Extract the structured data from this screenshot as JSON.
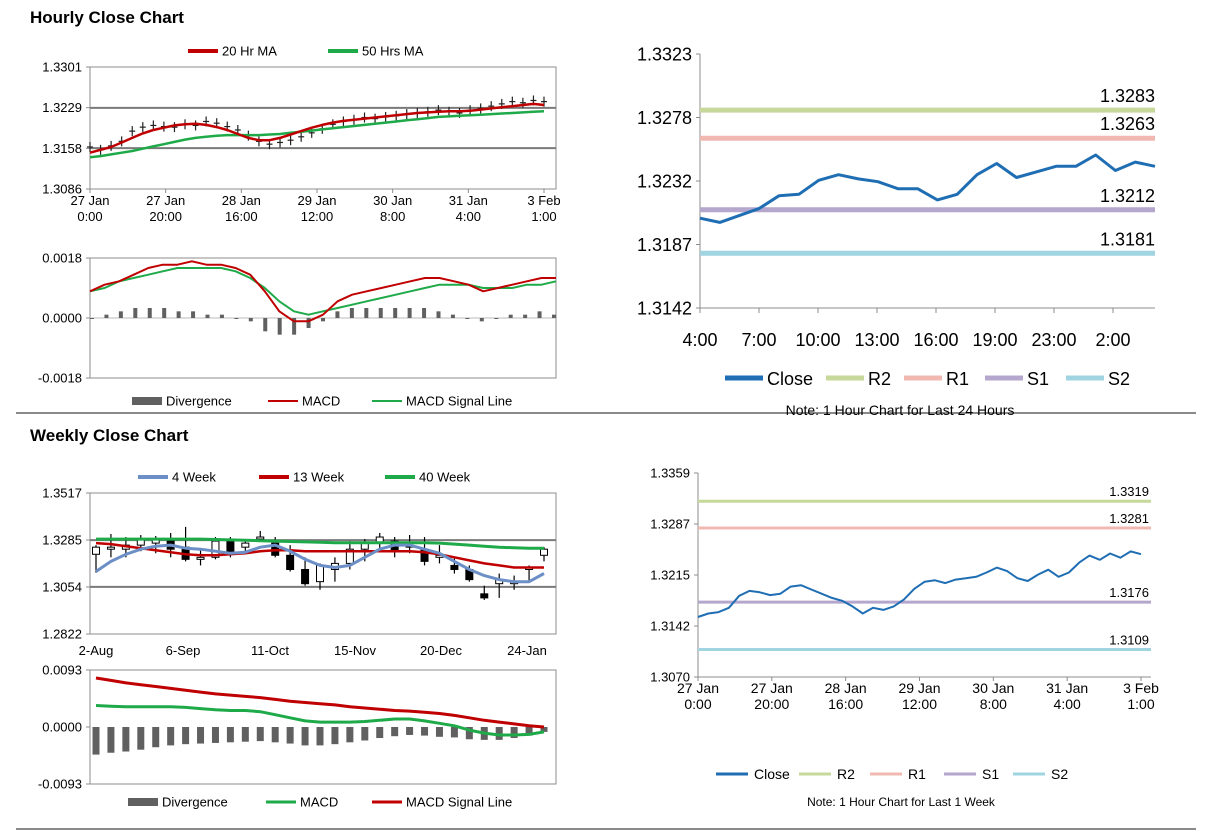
{
  "sections": {
    "hourly_title": "Hourly Close Chart",
    "weekly_title": "Weekly Close Chart"
  },
  "colors": {
    "red": "#c00000",
    "green": "#1faa4a",
    "blue": "#1f6eb4",
    "lightblue": "#6b8fc6",
    "r2": "#c6d89a",
    "r1": "#f0b8b0",
    "s1": "#b4a6cc",
    "s2": "#9fd4e0",
    "gray": "#7a7a7a",
    "div": "#606060"
  },
  "chart_data": [
    {
      "id": "hourly-price",
      "type": "line",
      "legend": [
        "20 Hr MA",
        "50 Hrs MA"
      ],
      "yticks": [
        "1.3301",
        "1.3229",
        "1.3158",
        "1.3086"
      ],
      "ylim": [
        1.3086,
        1.3301
      ],
      "xticks": [
        [
          "27 Jan",
          "0:00"
        ],
        [
          "27 Jan",
          "20:00"
        ],
        [
          "28 Jan",
          "16:00"
        ],
        [
          "29 Jan",
          "12:00"
        ],
        [
          "30 Jan",
          "8:00"
        ],
        [
          "31 Jan",
          "4:00"
        ],
        [
          "3 Feb",
          "1:00"
        ]
      ],
      "hlines": [
        1.3229,
        1.3158
      ],
      "close": [
        1.316,
        1.3155,
        1.3162,
        1.317,
        1.3188,
        1.3195,
        1.3198,
        1.3196,
        1.3195,
        1.32,
        1.3198,
        1.3205,
        1.3202,
        1.3196,
        1.319,
        1.318,
        1.317,
        1.3165,
        1.3168,
        1.3172,
        1.3178,
        1.3185,
        1.3192,
        1.32,
        1.3205,
        1.3208,
        1.3212,
        1.321,
        1.3213,
        1.3215,
        1.3218,
        1.322,
        1.3222,
        1.3225,
        1.3222,
        1.322,
        1.3225,
        1.3228,
        1.3232,
        1.3236,
        1.324,
        1.3238,
        1.3242,
        1.324
      ],
      "ma20": [
        1.315,
        1.3155,
        1.316,
        1.3168,
        1.3176,
        1.3184,
        1.319,
        1.3194,
        1.3198,
        1.32,
        1.3201,
        1.3199,
        1.3195,
        1.319,
        1.3183,
        1.3176,
        1.3172,
        1.3172,
        1.3176,
        1.3182,
        1.3188,
        1.3194,
        1.3199,
        1.3203,
        1.3206,
        1.3208,
        1.321,
        1.3212,
        1.3214,
        1.3216,
        1.3218,
        1.322,
        1.3221,
        1.3222,
        1.3223,
        1.3223,
        1.3224,
        1.3226,
        1.3228,
        1.323,
        1.3232,
        1.3234,
        1.3236,
        1.3234
      ],
      "ma50": [
        1.3142,
        1.3144,
        1.3147,
        1.315,
        1.3153,
        1.3157,
        1.3161,
        1.3165,
        1.3169,
        1.3173,
        1.3176,
        1.3178,
        1.318,
        1.3181,
        1.3181,
        1.3181,
        1.3181,
        1.3182,
        1.3183,
        1.3185,
        1.3187,
        1.3189,
        1.3191,
        1.3193,
        1.3195,
        1.3197,
        1.3199,
        1.3201,
        1.3203,
        1.3205,
        1.3207,
        1.3209,
        1.3211,
        1.3213,
        1.3214,
        1.3215,
        1.3216,
        1.3217,
        1.3218,
        1.3219,
        1.322,
        1.3221,
        1.3222,
        1.3223
      ]
    },
    {
      "id": "hourly-macd",
      "type": "line",
      "legend": [
        "Divergence",
        "MACD",
        "MACD Signal Line"
      ],
      "yticks": [
        "0.0018",
        "0.0000",
        "-0.0018"
      ],
      "ylim": [
        -0.0018,
        0.0018
      ],
      "macd": [
        0.0008,
        0.001,
        0.0011,
        0.0013,
        0.0015,
        0.0016,
        0.0016,
        0.0017,
        0.0016,
        0.0016,
        0.0015,
        0.0013,
        0.0008,
        0.0002,
        -0.0001,
        -0.0001,
        0.0001,
        0.0005,
        0.0007,
        0.0008,
        0.0009,
        0.001,
        0.0011,
        0.0012,
        0.0012,
        0.0011,
        0.001,
        0.0008,
        0.0009,
        0.001,
        0.0011,
        0.0012,
        0.0012
      ],
      "signal": [
        0.0008,
        0.0009,
        0.0011,
        0.0012,
        0.0013,
        0.0014,
        0.0015,
        0.0015,
        0.0015,
        0.0015,
        0.0014,
        0.0012,
        0.0009,
        0.0005,
        0.0002,
        0.0001,
        0.0002,
        0.0003,
        0.0004,
        0.0005,
        0.0006,
        0.0007,
        0.0008,
        0.0009,
        0.001,
        0.001,
        0.001,
        0.0009,
        0.0009,
        0.0009,
        0.001,
        0.001,
        0.0011
      ],
      "divergence": [
        0.0,
        0.0001,
        0.0002,
        0.0003,
        0.0003,
        0.0003,
        0.0002,
        0.0002,
        0.0001,
        0.0001,
        0.0,
        -0.0001,
        -0.0004,
        -0.0005,
        -0.0005,
        -0.0003,
        -0.0001,
        0.0002,
        0.0003,
        0.0003,
        0.0003,
        0.0003,
        0.0003,
        0.0003,
        0.0002,
        0.0001,
        0.0,
        -0.0001,
        0.0,
        0.0001,
        0.0001,
        0.0002,
        0.0001
      ]
    },
    {
      "id": "hourly-24h",
      "type": "line",
      "legend": [
        "Close",
        "R2",
        "R1",
        "S1",
        "S2"
      ],
      "yticks": [
        "1.3323",
        "1.3278",
        "1.3232",
        "1.3187",
        "1.3142"
      ],
      "ylim": [
        1.3142,
        1.3323
      ],
      "xticks": [
        "4:00",
        "7:00",
        "10:00",
        "13:00",
        "16:00",
        "19:00",
        "23:00",
        "2:00"
      ],
      "close": [
        1.3206,
        1.3203,
        1.3208,
        1.3213,
        1.3222,
        1.3223,
        1.3233,
        1.3237,
        1.3234,
        1.3232,
        1.3227,
        1.3227,
        1.3219,
        1.3223,
        1.3237,
        1.3245,
        1.3235,
        1.3239,
        1.3243,
        1.3243,
        1.3251,
        1.324,
        1.3246,
        1.3243
      ],
      "levels": {
        "R2": 1.3283,
        "R1": 1.3263,
        "S1": 1.3212,
        "S2": 1.3181
      },
      "level_labels": [
        "1.3283",
        "1.3263",
        "1.3212",
        "1.3181"
      ],
      "note": "Note: 1 Hour Chart for Last 24 Hours"
    },
    {
      "id": "weekly-price",
      "type": "candlestick",
      "legend": [
        "4 Week",
        "13 Week",
        "40 Week"
      ],
      "yticks": [
        "1.3517",
        "1.3285",
        "1.3054",
        "1.2822"
      ],
      "ylim": [
        1.2822,
        1.3517
      ],
      "xticks": [
        "2-Aug",
        "6-Sep",
        "11-Oct",
        "15-Nov",
        "20-Dec",
        "24-Jan"
      ],
      "hlines": [
        1.3285,
        1.3054
      ],
      "candles": [
        [
          1.3215,
          1.326,
          1.3125,
          1.325
        ],
        [
          1.324,
          1.3315,
          1.32,
          1.325
        ],
        [
          1.324,
          1.33,
          1.32,
          1.326
        ],
        [
          1.326,
          1.331,
          1.323,
          1.329
        ],
        [
          1.327,
          1.3305,
          1.322,
          1.329
        ],
        [
          1.328,
          1.332,
          1.32,
          1.324
        ],
        [
          1.325,
          1.335,
          1.318,
          1.319
        ],
        [
          1.319,
          1.324,
          1.316,
          1.32
        ],
        [
          1.32,
          1.33,
          1.319,
          1.328
        ],
        [
          1.328,
          1.33,
          1.32,
          1.322
        ],
        [
          1.325,
          1.328,
          1.322,
          1.327
        ],
        [
          1.33,
          1.333,
          1.328,
          1.33
        ],
        [
          1.327,
          1.33,
          1.32,
          1.321
        ],
        [
          1.321,
          1.326,
          1.313,
          1.314
        ],
        [
          1.314,
          1.32,
          1.306,
          1.307
        ],
        [
          1.308,
          1.317,
          1.304,
          1.316
        ],
        [
          1.314,
          1.32,
          1.308,
          1.317
        ],
        [
          1.317,
          1.328,
          1.314,
          1.324
        ],
        [
          1.324,
          1.329,
          1.318,
          1.327
        ],
        [
          1.327,
          1.332,
          1.324,
          1.33
        ],
        [
          1.328,
          1.33,
          1.32,
          1.323
        ],
        [
          1.326,
          1.331,
          1.322,
          1.325
        ],
        [
          1.324,
          1.33,
          1.316,
          1.318
        ],
        [
          1.32,
          1.326,
          1.317,
          1.321
        ],
        [
          1.316,
          1.32,
          1.312,
          1.314
        ],
        [
          1.314,
          1.316,
          1.308,
          1.309
        ],
        [
          1.302,
          1.306,
          1.299,
          1.3
        ],
        [
          1.307,
          1.312,
          1.3,
          1.309
        ],
        [
          1.307,
          1.311,
          1.304,
          1.308
        ],
        [
          1.314,
          1.316,
          1.308,
          1.315
        ],
        [
          1.321,
          1.325,
          1.318,
          1.324
        ]
      ],
      "ma4": [
        1.313,
        1.318,
        1.3215,
        1.324,
        1.3255,
        1.326,
        1.3245,
        1.324,
        1.323,
        1.322,
        1.3225,
        1.325,
        1.326,
        1.323,
        1.319,
        1.316,
        1.315,
        1.316,
        1.32,
        1.324,
        1.326,
        1.326,
        1.324,
        1.322,
        1.318,
        1.314,
        1.311,
        1.309,
        1.308,
        1.308,
        1.312
      ],
      "ma13": [
        1.327,
        1.3265,
        1.3255,
        1.3245,
        1.3235,
        1.3225,
        1.3215,
        1.321,
        1.321,
        1.3215,
        1.322,
        1.323,
        1.3235,
        1.3235,
        1.323,
        1.323,
        1.323,
        1.323,
        1.323,
        1.323,
        1.323,
        1.323,
        1.3225,
        1.3215,
        1.32,
        1.3185,
        1.317,
        1.316,
        1.315,
        1.315,
        1.315
      ],
      "ma40": [
        1.329,
        1.329,
        1.329,
        1.329,
        1.329,
        1.329,
        1.329,
        1.329,
        1.3288,
        1.3286,
        1.3284,
        1.3282,
        1.328,
        1.3278,
        1.3276,
        1.3274,
        1.3272,
        1.3272,
        1.3272,
        1.3272,
        1.3272,
        1.3272,
        1.3272,
        1.327,
        1.3265,
        1.326,
        1.3255,
        1.325,
        1.3247,
        1.3245,
        1.3245
      ]
    },
    {
      "id": "weekly-macd",
      "type": "line",
      "legend": [
        "Divergence",
        "MACD",
        "MACD Signal Line"
      ],
      "yticks": [
        "0.0093",
        "0.0000",
        "-0.0093"
      ],
      "ylim": [
        -0.0093,
        0.0093
      ],
      "macd": [
        0.0035,
        0.0034,
        0.0033,
        0.0033,
        0.0033,
        0.0033,
        0.0032,
        0.003,
        0.0028,
        0.0027,
        0.0027,
        0.0025,
        0.002,
        0.0015,
        0.001,
        0.0008,
        0.0008,
        0.0008,
        0.0009,
        0.0011,
        0.0013,
        0.0013,
        0.001,
        0.0006,
        0.0002,
        -0.0005,
        -0.001,
        -0.0013,
        -0.0013,
        -0.0012,
        -0.0008
      ],
      "signal": [
        0.008,
        0.0076,
        0.0072,
        0.0069,
        0.0066,
        0.0063,
        0.006,
        0.0057,
        0.0054,
        0.0052,
        0.005,
        0.0048,
        0.0045,
        0.0042,
        0.004,
        0.0038,
        0.0036,
        0.0033,
        0.0031,
        0.0029,
        0.0027,
        0.0026,
        0.0024,
        0.0022,
        0.0019,
        0.0015,
        0.0011,
        0.0008,
        0.0005,
        0.0002,
        0.0
      ],
      "divergence": [
        -0.0045,
        -0.0042,
        -0.004,
        -0.0037,
        -0.0033,
        -0.003,
        -0.0028,
        -0.0027,
        -0.0026,
        -0.0025,
        -0.0024,
        -0.0023,
        -0.0025,
        -0.0027,
        -0.003,
        -0.003,
        -0.0028,
        -0.0025,
        -0.0022,
        -0.0018,
        -0.0015,
        -0.0013,
        -0.0014,
        -0.0016,
        -0.0017,
        -0.002,
        -0.0021,
        -0.0021,
        -0.0018,
        -0.0014,
        -0.0008
      ]
    },
    {
      "id": "weekly-hourly",
      "type": "line",
      "legend": [
        "Close",
        "R2",
        "R1",
        "S1",
        "S2"
      ],
      "yticks": [
        "1.3359",
        "1.3287",
        "1.3215",
        "1.3142",
        "1.3070"
      ],
      "ylim": [
        1.307,
        1.3359
      ],
      "xticks": [
        [
          "27 Jan",
          "0:00"
        ],
        [
          "27 Jan",
          "20:00"
        ],
        [
          "28 Jan",
          "16:00"
        ],
        [
          "29 Jan",
          "12:00"
        ],
        [
          "30 Jan",
          "8:00"
        ],
        [
          "31 Jan",
          "4:00"
        ],
        [
          "3 Feb",
          "1:00"
        ]
      ],
      "close": [
        1.3155,
        1.316,
        1.3162,
        1.3168,
        1.3185,
        1.3192,
        1.319,
        1.3186,
        1.3188,
        1.3198,
        1.32,
        1.3194,
        1.3188,
        1.3182,
        1.3178,
        1.317,
        1.316,
        1.3168,
        1.3165,
        1.317,
        1.318,
        1.3195,
        1.3205,
        1.3207,
        1.3203,
        1.3208,
        1.321,
        1.3212,
        1.3218,
        1.3225,
        1.322,
        1.321,
        1.3206,
        1.3215,
        1.3222,
        1.3212,
        1.3218,
        1.3232,
        1.3242,
        1.3236,
        1.3245,
        1.3239,
        1.3248,
        1.3244
      ],
      "levels": {
        "R2": 1.3319,
        "R1": 1.3281,
        "S1": 1.3176,
        "S2": 1.3109
      },
      "level_labels": [
        "1.3319",
        "1.3281",
        "1.3176",
        "1.3109"
      ],
      "note": "Note: 1 Hour Chart for Last 1 Week"
    }
  ]
}
